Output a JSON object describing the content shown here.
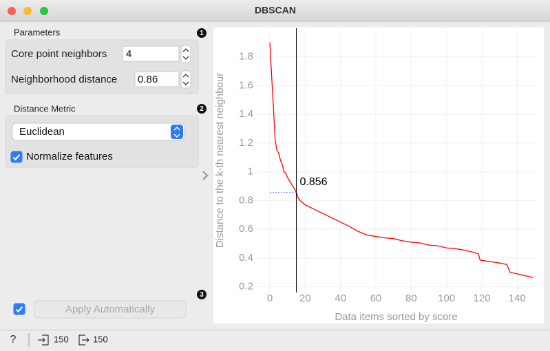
{
  "window": {
    "title": "DBSCAN"
  },
  "badges": [
    1,
    2,
    3
  ],
  "parameters": {
    "title": "Parameters",
    "core_point_neighbors": {
      "label": "Core point neighbors",
      "value": 4
    },
    "neighborhood_distance": {
      "label": "Neighborhood distance",
      "value": 0.86
    }
  },
  "distance_metric": {
    "title": "Distance Metric",
    "metric": "Euclidean",
    "normalize": {
      "label": "Normalize features",
      "checked": true
    }
  },
  "apply": {
    "label": "Apply Automatically",
    "checked": true
  },
  "status": {
    "input": 150,
    "output": 150
  },
  "chart_data": {
    "type": "line",
    "xlabel": "Data items sorted by score",
    "ylabel": "Distance to the k-th nearest neighbour",
    "x": [
      0,
      1,
      2,
      3,
      4,
      5,
      6,
      7,
      8,
      9,
      10,
      11,
      12,
      13,
      14,
      15,
      16,
      17,
      18,
      20,
      25,
      30,
      35,
      40,
      45,
      50,
      55,
      60,
      65,
      70,
      75,
      80,
      85,
      90,
      95,
      100,
      105,
      110,
      115,
      118,
      119,
      125,
      130,
      134,
      135,
      136,
      140,
      145,
      149
    ],
    "values": [
      1.9,
      1.67,
      1.45,
      1.22,
      1.15,
      1.13,
      1.08,
      1.05,
      1.0,
      0.99,
      0.96,
      0.94,
      0.92,
      0.9,
      0.88,
      0.856,
      0.82,
      0.8,
      0.79,
      0.77,
      0.74,
      0.71,
      0.68,
      0.65,
      0.62,
      0.585,
      0.56,
      0.55,
      0.54,
      0.535,
      0.52,
      0.51,
      0.505,
      0.49,
      0.485,
      0.47,
      0.465,
      0.455,
      0.44,
      0.43,
      0.385,
      0.375,
      0.365,
      0.355,
      0.33,
      0.3,
      0.29,
      0.275,
      0.265
    ],
    "color": "#ff0000",
    "cutoff": {
      "x": 15,
      "y": 0.856
    },
    "xlim": [
      -8,
      151
    ],
    "ylim": [
      0.16,
      1.98
    ],
    "xticks": [
      0,
      20,
      40,
      60,
      80,
      100,
      120,
      140
    ],
    "yticks": [
      0.2,
      0.4,
      0.6,
      0.8,
      1,
      1.2,
      1.4,
      1.6,
      1.8
    ],
    "grid": true
  }
}
